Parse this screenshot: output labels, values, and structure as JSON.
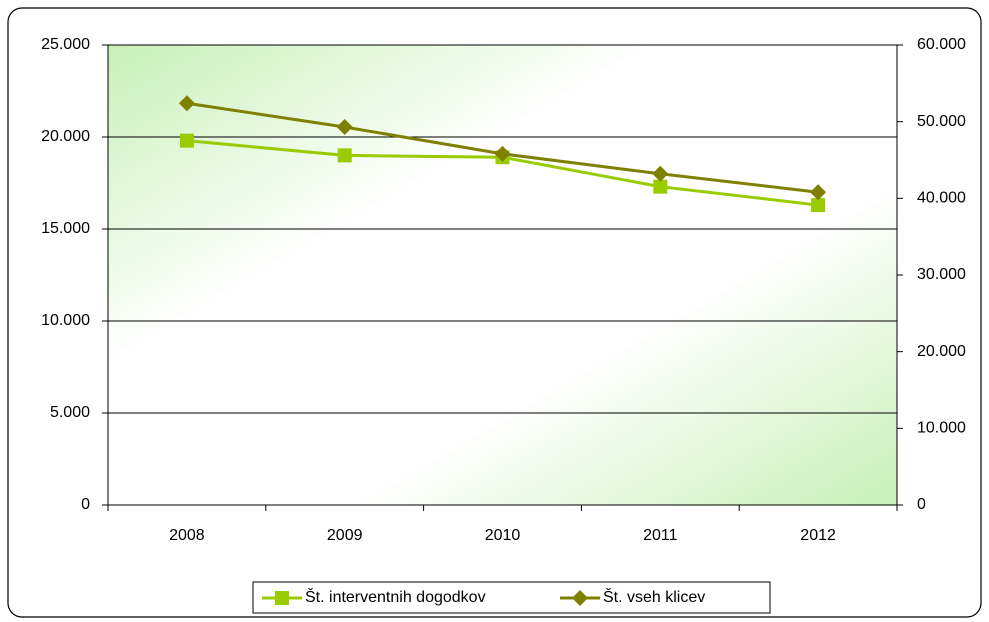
{
  "chart_data": {
    "type": "line",
    "categories": [
      "2008",
      "2009",
      "2010",
      "2011",
      "2012"
    ],
    "series": [
      {
        "name": "Št. interventnih dogodkov",
        "color": "#99cc00",
        "marker": "square",
        "values": [
          19800,
          19000,
          18900,
          17300,
          16300
        ]
      },
      {
        "name": "Št. vseh klicev",
        "color": "#808000",
        "marker": "diamond",
        "axis": "y2",
        "values": [
          52400,
          49300,
          45800,
          43200,
          40800
        ]
      }
    ],
    "ylim": [
      0,
      25000
    ],
    "yticks": [
      0,
      {
        "value": 5000,
        "label": "5.000"
      },
      {
        "value": 10000,
        "label": "10.000"
      },
      {
        "value": 15000,
        "label": "15.000"
      },
      {
        "value": 20000,
        "label": "20.000"
      },
      {
        "value": 25000,
        "label": "25.000"
      }
    ],
    "y2lim": [
      0,
      60000
    ],
    "y2ticks": [
      0,
      {
        "value": 10000,
        "label": "10.000"
      },
      {
        "value": 20000,
        "label": "20.000"
      },
      {
        "value": 30000,
        "label": "30.000"
      },
      {
        "value": 40000,
        "label": "40.000"
      },
      {
        "value": 50000,
        "label": "50.000"
      },
      {
        "value": 60000,
        "label": "60.000"
      }
    ],
    "grid": true,
    "legend": "bottom"
  }
}
